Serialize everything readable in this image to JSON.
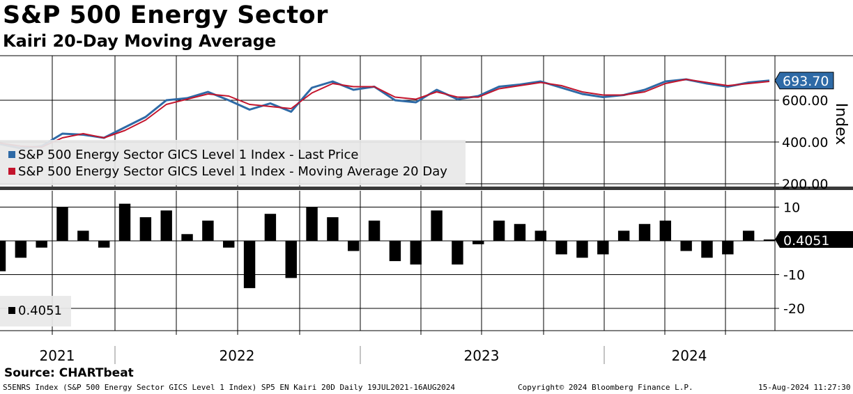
{
  "title": "S&P 500 Energy Sector",
  "subtitle": "Kairi 20-Day Moving Average",
  "source": "Source: CHARTbeat",
  "footer": {
    "left": "S5ENRS Index (S&P 500 Energy Sector GICS Level 1 Index) SP5 EN Kairi 20D  Daily 19JUL2021-16AUG2024",
    "center": "Copyright© 2024 Bloomberg Finance L.P.",
    "right": "15-Aug-2024 11:27:30"
  },
  "colors": {
    "price": "#2e6aa6",
    "moving_average": "#c3142c",
    "kairi": "#000000"
  },
  "chart_data": [
    {
      "type": "line",
      "ylabel": "Index",
      "ylim": [
        90,
        720
      ],
      "yticks": [
        200,
        400,
        600
      ],
      "ytick_labels": [
        "200.00",
        "400.00",
        "600.00"
      ],
      "grid": true,
      "legend_position": "bottom-left",
      "last_value_label": "693.70",
      "series": [
        {
          "name": "S&P 500 Energy Sector GICS Level 1 Index - Last Price",
          "color": "#2e6aa6",
          "x": [
            "2021-07",
            "2021-08",
            "2021-09",
            "2021-10",
            "2021-11",
            "2021-12",
            "2022-01",
            "2022-02",
            "2022-03",
            "2022-04",
            "2022-05",
            "2022-06",
            "2022-07",
            "2022-08",
            "2022-09",
            "2022-10",
            "2022-11",
            "2022-12",
            "2023-01",
            "2023-02",
            "2023-03",
            "2023-04",
            "2023-05",
            "2023-06",
            "2023-07",
            "2023-08",
            "2023-09",
            "2023-10",
            "2023-11",
            "2023-12",
            "2024-01",
            "2024-02",
            "2024-03",
            "2024-04",
            "2024-05",
            "2024-06",
            "2024-07",
            "2024-08"
          ],
          "values": [
            390,
            370,
            380,
            440,
            435,
            420,
            470,
            520,
            600,
            610,
            640,
            600,
            555,
            585,
            545,
            660,
            690,
            650,
            665,
            600,
            590,
            650,
            605,
            620,
            665,
            675,
            690,
            660,
            630,
            615,
            625,
            650,
            690,
            700,
            680,
            665,
            685,
            694
          ]
        },
        {
          "name": "S&P 500 Energy Sector GICS Level 1 Index - Moving Average 20 Day",
          "color": "#c3142c",
          "x": [
            "2021-07",
            "2021-08",
            "2021-09",
            "2021-10",
            "2021-11",
            "2021-12",
            "2022-01",
            "2022-02",
            "2022-03",
            "2022-04",
            "2022-05",
            "2022-06",
            "2022-07",
            "2022-08",
            "2022-09",
            "2022-10",
            "2022-11",
            "2022-12",
            "2023-01",
            "2023-02",
            "2023-03",
            "2023-04",
            "2023-05",
            "2023-06",
            "2023-07",
            "2023-08",
            "2023-09",
            "2023-10",
            "2023-11",
            "2023-12",
            "2024-01",
            "2024-02",
            "2024-03",
            "2024-04",
            "2024-05",
            "2024-06",
            "2024-07",
            "2024-08"
          ],
          "values": [
            395,
            380,
            375,
            420,
            440,
            420,
            455,
            505,
            580,
            605,
            630,
            620,
            580,
            570,
            560,
            635,
            680,
            665,
            665,
            615,
            605,
            640,
            615,
            615,
            655,
            670,
            685,
            670,
            640,
            625,
            625,
            640,
            680,
            700,
            685,
            670,
            680,
            690
          ]
        }
      ]
    },
    {
      "type": "bar",
      "title": "",
      "ylim": [
        -27,
        13
      ],
      "yticks": [
        10,
        -10,
        -20
      ],
      "ytick_labels": [
        "10",
        "-10",
        "-20"
      ],
      "grid": true,
      "legend_position": "bottom-left",
      "last_value_label": "0.4051",
      "series": [
        {
          "name": "0.4051",
          "color": "#000000",
          "x": [
            "2021-07",
            "2021-08",
            "2021-09",
            "2021-10",
            "2021-11",
            "2021-12",
            "2022-01",
            "2022-02",
            "2022-03",
            "2022-04",
            "2022-05",
            "2022-06",
            "2022-07",
            "2022-08",
            "2022-09",
            "2022-10",
            "2022-11",
            "2022-12",
            "2023-01",
            "2023-02",
            "2023-03",
            "2023-04",
            "2023-05",
            "2023-06",
            "2023-07",
            "2023-08",
            "2023-09",
            "2023-10",
            "2023-11",
            "2023-12",
            "2024-01",
            "2024-02",
            "2024-03",
            "2024-04",
            "2024-05",
            "2024-06",
            "2024-07",
            "2024-08"
          ],
          "values": [
            -9,
            -5,
            -2,
            10,
            3,
            -2,
            11,
            7,
            9,
            2,
            6,
            -2,
            -14,
            8,
            -11,
            10,
            7,
            -3,
            6,
            -6,
            -7,
            9,
            -7,
            -1,
            6,
            5,
            3,
            -4,
            -5,
            -4,
            3,
            5,
            6,
            -3,
            -5,
            -4,
            3,
            0.4051
          ]
        }
      ]
    }
  ],
  "x_axis": {
    "year_labels": [
      "2021",
      "2022",
      "2023",
      "2024"
    ]
  }
}
